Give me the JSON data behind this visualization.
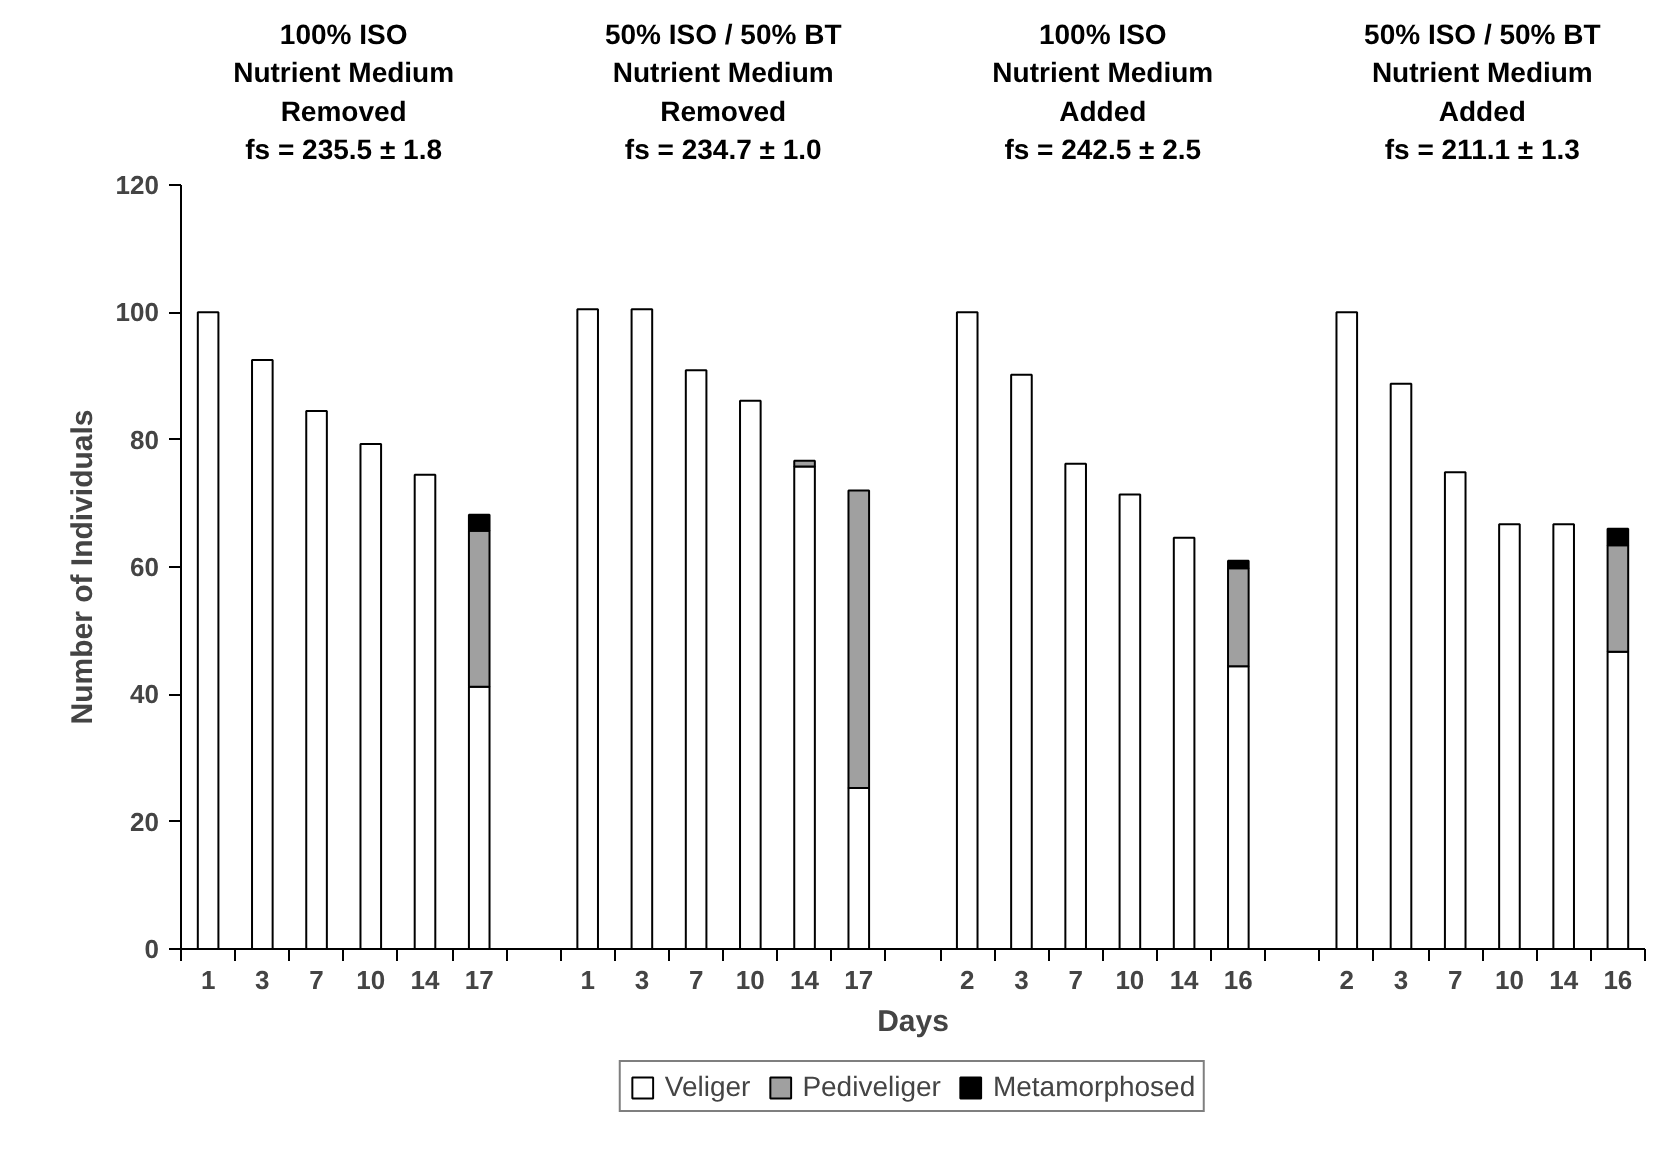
{
  "chart_data": {
    "type": "bar",
    "stacked": true,
    "xlabel": "Days",
    "ylabel": "Number of Individuals",
    "categories": [
      "1",
      "3",
      "7",
      "10",
      "14",
      "17",
      null,
      "1",
      "3",
      "7",
      "10",
      "14",
      "17",
      null,
      "2",
      "3",
      "7",
      "10",
      "14",
      "16",
      null,
      "2",
      "3",
      "7",
      "10",
      "14",
      "16"
    ],
    "series": [
      {
        "name": "Veliger",
        "color": "#ffffff",
        "values": [
          100,
          92.5,
          84.5,
          79.3,
          74.5,
          41.2,
          null,
          100.5,
          100.5,
          90.9,
          86.1,
          75.8,
          25.3,
          null,
          100,
          90.2,
          76.2,
          71.4,
          64.6,
          44.4,
          null,
          100,
          88.8,
          74.9,
          66.7,
          66.7,
          46.7
        ]
      },
      {
        "name": "Pediveliger",
        "color": "#a0a0a0",
        "values": [
          0,
          0,
          0,
          0,
          0,
          24.5,
          null,
          0,
          0,
          0,
          0,
          0.9,
          46.7,
          null,
          0,
          0,
          0,
          0,
          0,
          15.4,
          null,
          0,
          0,
          0,
          0,
          0,
          16.7
        ]
      },
      {
        "name": "Metamorphosed",
        "color": "#000000",
        "values": [
          0,
          0,
          0,
          0,
          0,
          2.5,
          null,
          0,
          0,
          0,
          0,
          0,
          0,
          null,
          0,
          0,
          0,
          0,
          0,
          1.2,
          null,
          0,
          0,
          0,
          0,
          0,
          2.6
        ]
      }
    ],
    "ylim": [
      0,
      120
    ],
    "yticks": [
      0,
      20,
      40,
      60,
      80,
      100,
      120
    ],
    "grid": false,
    "legend": "bottom",
    "annotations": [
      "100% ISO\nNutrient Medium\nRemoved\nfs = 235.5 ± 1.8",
      "50% ISO / 50% BT\nNutrient Medium\nRemoved\nfs = 234.7 ± 1.0",
      "100% ISO\nNutrient Medium\nAdded\nfs = 242.5 ± 2.5",
      "50% ISO / 50% BT\nNutrient Medium\nAdded\nfs = 211.1 ± 1.3"
    ]
  }
}
